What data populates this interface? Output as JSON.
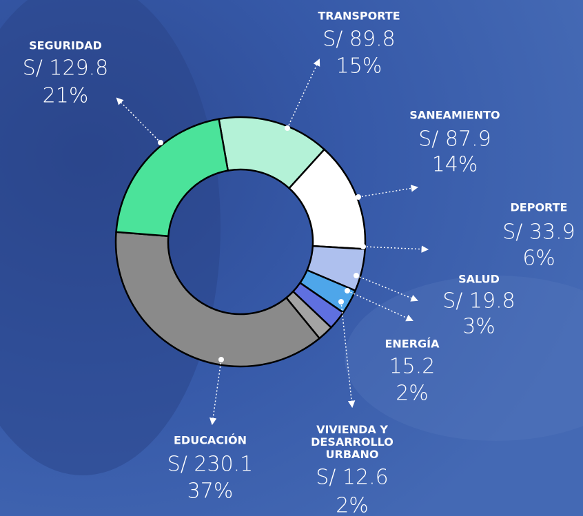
{
  "chart_data": {
    "type": "pie",
    "donut": true,
    "categories": [
      "TRANSPORTE",
      "SANEAMIENTO",
      "DEPORTE",
      "SALUD",
      "ENERGÍA",
      "VIVIENDA Y DESARROLLO URBANO",
      "EDUCACIÓN",
      "SEGURIDAD"
    ],
    "values": [
      89.8,
      87.9,
      33.9,
      19.8,
      15.2,
      12.6,
      230.1,
      129.8
    ],
    "value_labels": [
      "S/ 89.8",
      "S/ 87.9",
      "S/ 33.9",
      "S/ 19.8",
      "15.2",
      "S/ 12.6",
      "S/ 230.1",
      "S/ 129.8"
    ],
    "percents": [
      15,
      14,
      6,
      3,
      2,
      2,
      37,
      21
    ],
    "percent_labels": [
      "15%",
      "14%",
      "6%",
      "3%",
      "2%",
      "2%",
      "37%",
      "21%"
    ],
    "colors": [
      "#b4f2d7",
      "#ffffff",
      "#aec0ee",
      "#4ea6ea",
      "#5f70e0",
      "#a3a3a3",
      "#8a8a8a",
      "#4be39a"
    ]
  }
}
